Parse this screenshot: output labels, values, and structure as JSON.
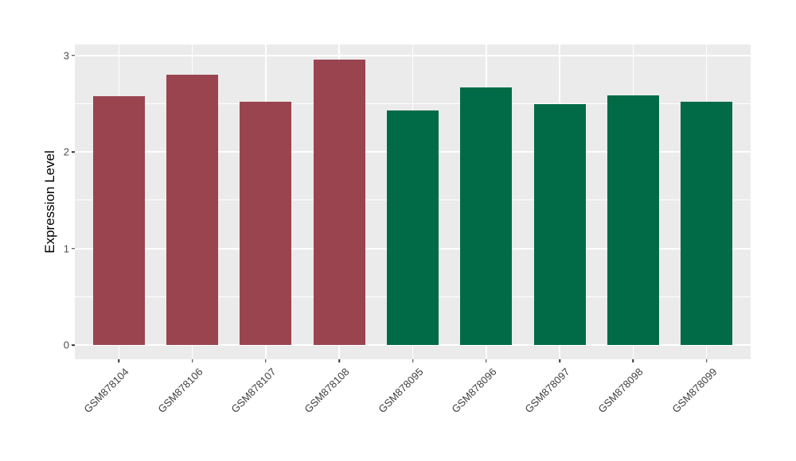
{
  "chart_data": {
    "type": "bar",
    "ylabel": "Expression Level",
    "categories": [
      "GSM878104",
      "GSM878106",
      "GSM878107",
      "GSM878108",
      "GSM878095",
      "GSM878096",
      "GSM878097",
      "GSM878098",
      "GSM878099"
    ],
    "values": [
      2.58,
      2.8,
      2.52,
      2.96,
      2.43,
      2.67,
      2.5,
      2.59,
      2.52
    ],
    "bar_colors": [
      "#9A4450",
      "#9A4450",
      "#9A4450",
      "#9A4450",
      "#006B46",
      "#006B46",
      "#006B46",
      "#006B46",
      "#006B46"
    ],
    "y_ticks": [
      0,
      1,
      2,
      3
    ],
    "y_minor_ticks": [
      0.5,
      1.5,
      2.5
    ],
    "ylim": [
      0,
      3.11
    ],
    "x_label_angle": 45,
    "grid": true,
    "legend": "none",
    "panel_background": "#EBEBEB",
    "gridline_color": "#FFFFFF",
    "tick_label_color": "#4D4D4D",
    "tick_mark_color": "#333333"
  }
}
